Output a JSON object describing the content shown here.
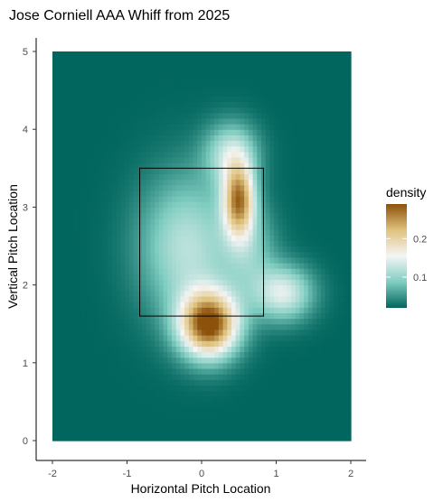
{
  "chart_data": {
    "type": "heatmap",
    "title": "Jose Corniell AAA Whiff from 2025",
    "xlabel": "Horizontal Pitch Location",
    "ylabel": "Vertical Pitch Location",
    "xlim": [
      -2,
      2
    ],
    "ylim": [
      0,
      5
    ],
    "x_ticks": [
      "-2",
      "-1",
      "0",
      "1",
      "2"
    ],
    "y_ticks": [
      "0",
      "1",
      "2",
      "3",
      "4",
      "5"
    ],
    "legend": {
      "title": "density",
      "labels": [
        "0.1",
        "0.2"
      ],
      "label_values": [
        0.1,
        0.2
      ],
      "range": [
        0.02,
        0.29
      ],
      "placement": "right",
      "colors": [
        "#01665e",
        "#80cdc1",
        "#f5f5f5",
        "#dfc27d",
        "#8c510a"
      ]
    },
    "strike_zone": {
      "x": [
        -0.83,
        0.83
      ],
      "y": [
        1.6,
        3.5
      ]
    },
    "density_peaks": [
      {
        "x": 0.1,
        "y": 1.5,
        "density": 0.29
      },
      {
        "x": 0.5,
        "y": 3.1,
        "density": 0.25
      },
      {
        "x": -0.2,
        "y": 2.5,
        "density": 0.12
      },
      {
        "x": 1.1,
        "y": 1.9,
        "density": 0.15
      }
    ],
    "grid": false
  }
}
